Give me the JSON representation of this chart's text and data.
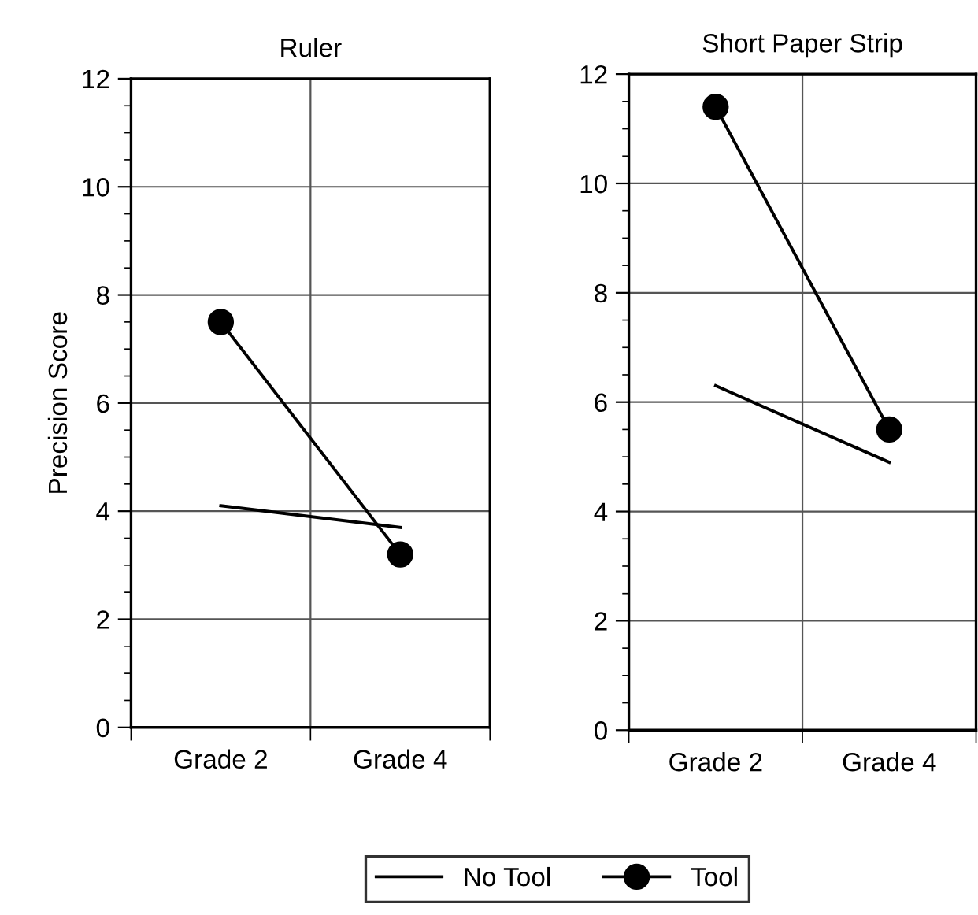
{
  "chart_data": [
    {
      "type": "line",
      "title": "Ruler",
      "ylabel": "Precision Score",
      "categories": [
        "Grade 2",
        "Grade 4"
      ],
      "ylim": [
        0,
        12
      ],
      "yticks": [
        0,
        2,
        4,
        6,
        8,
        10,
        12
      ],
      "grid": true,
      "legend": "bottom",
      "series": [
        {
          "name": "No Tool",
          "color": "#000000",
          "values": [
            4.1,
            3.7
          ],
          "marker": "none"
        },
        {
          "name": "Tool",
          "color": "#000000",
          "values": [
            7.5,
            3.2
          ],
          "marker": "circle"
        }
      ]
    },
    {
      "type": "line",
      "title": "Short Paper Strip",
      "categories": [
        "Grade 2",
        "Grade 4"
      ],
      "ylim": [
        0,
        12
      ],
      "yticks": [
        0,
        2,
        4,
        6,
        8,
        10,
        12
      ],
      "grid": true,
      "series": [
        {
          "color": "#000000",
          "values": [
            6.3,
            4.9
          ],
          "marker": "none"
        },
        {
          "color": "#000000",
          "values": [
            11.4,
            5.5
          ],
          "marker": "circle"
        }
      ]
    }
  ]
}
